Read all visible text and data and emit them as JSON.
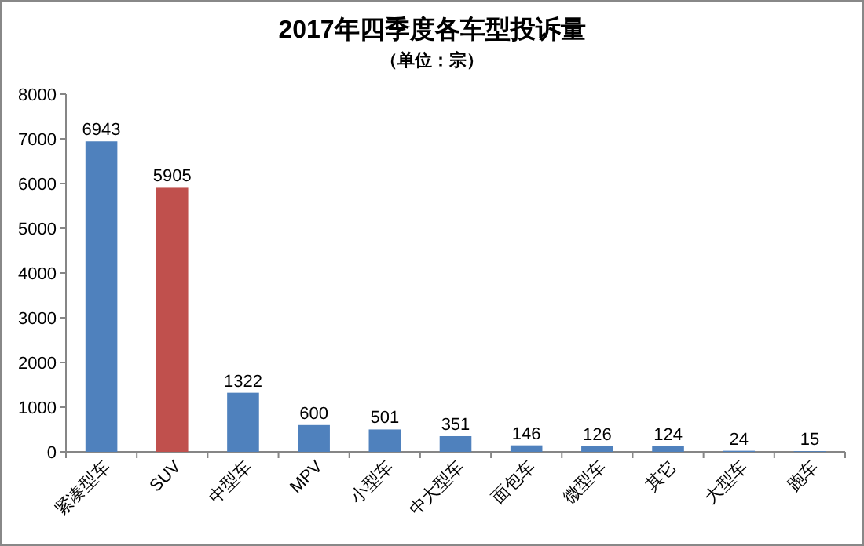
{
  "chart_data": {
    "type": "bar",
    "title": "2017年四季度各车型投诉量",
    "subtitle": "（单位：宗）",
    "categories": [
      "紧凑型车",
      "SUV",
      "中型车",
      "MPV",
      "小型车",
      "中大型车",
      "面包车",
      "微型车",
      "其它",
      "大型车",
      "跑车"
    ],
    "values": [
      6943,
      5905,
      1322,
      600,
      501,
      351,
      146,
      126,
      124,
      24,
      15
    ],
    "colors": [
      "#4f81bd",
      "#c0504d",
      "#4f81bd",
      "#4f81bd",
      "#4f81bd",
      "#4f81bd",
      "#4f81bd",
      "#4f81bd",
      "#4f81bd",
      "#4f81bd",
      "#4f81bd"
    ],
    "ylim": [
      0,
      8000
    ],
    "yticks": [
      0,
      1000,
      2000,
      3000,
      4000,
      5000,
      6000,
      7000,
      8000
    ],
    "data_labels": true
  }
}
